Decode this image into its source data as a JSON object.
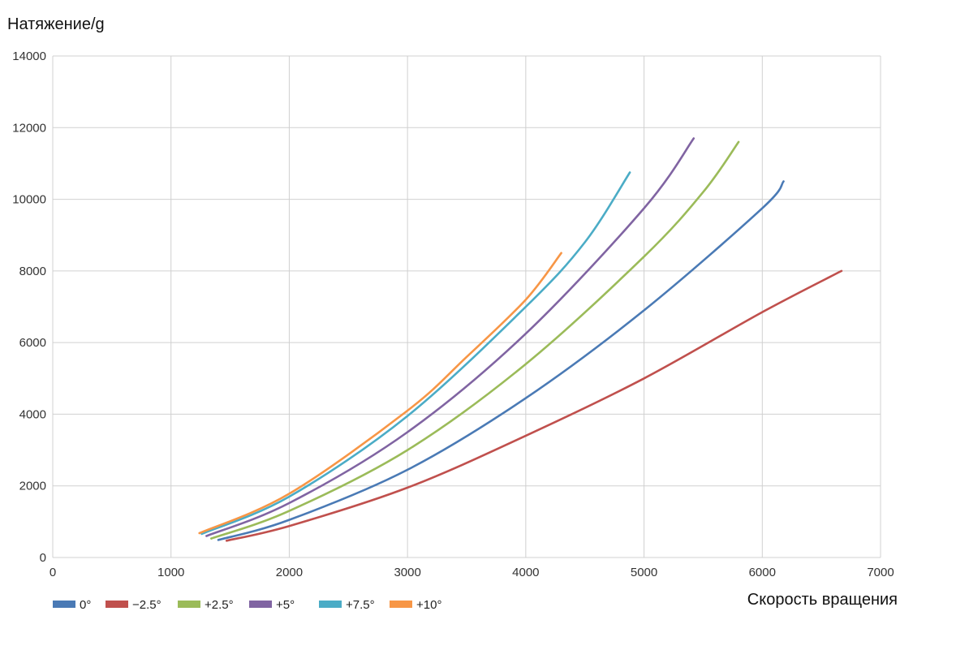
{
  "chart_data": {
    "type": "line",
    "title": "",
    "ylabel": "Натяжение/g",
    "xlabel": "Скорость вращения",
    "xlim": [
      0,
      7000
    ],
    "ylim": [
      0,
      14000
    ],
    "x_ticks": [
      "0",
      "1000",
      "2000",
      "3000",
      "4000",
      "5000",
      "6000",
      "7000"
    ],
    "y_ticks": [
      "0",
      "2000",
      "4000",
      "6000",
      "8000",
      "10000",
      "12000",
      "14000"
    ],
    "grid": true,
    "legend_position": "bottom-left",
    "series": [
      {
        "name": "0°",
        "color": "#4a7ab5",
        "points": [
          [
            1400,
            490
          ],
          [
            2000,
            1050
          ],
          [
            3000,
            2450
          ],
          [
            4000,
            4450
          ],
          [
            5000,
            6900
          ],
          [
            6000,
            9750
          ],
          [
            6180,
            10500
          ]
        ]
      },
      {
        "name": "−2.5°",
        "color": "#c0504d",
        "points": [
          [
            1470,
            470
          ],
          [
            2000,
            880
          ],
          [
            3000,
            1950
          ],
          [
            4000,
            3400
          ],
          [
            5000,
            5000
          ],
          [
            6000,
            6850
          ],
          [
            6670,
            8000
          ]
        ]
      },
      {
        "name": "+2.5°",
        "color": "#9bbb59",
        "points": [
          [
            1340,
            530
          ],
          [
            2000,
            1300
          ],
          [
            3000,
            3000
          ],
          [
            4000,
            5400
          ],
          [
            5000,
            8400
          ],
          [
            5500,
            10200
          ],
          [
            5800,
            11600
          ]
        ]
      },
      {
        "name": "+5°",
        "color": "#8064a2",
        "points": [
          [
            1300,
            600
          ],
          [
            2000,
            1520
          ],
          [
            3000,
            3500
          ],
          [
            4000,
            6250
          ],
          [
            5000,
            9750
          ],
          [
            5420,
            11700
          ]
        ]
      },
      {
        "name": "+7.5°",
        "color": "#4bacc6",
        "points": [
          [
            1260,
            660
          ],
          [
            2000,
            1700
          ],
          [
            3000,
            3950
          ],
          [
            4000,
            7000
          ],
          [
            4500,
            8800
          ],
          [
            4880,
            10750
          ]
        ]
      },
      {
        "name": "+10°",
        "color": "#f79646",
        "points": [
          [
            1240,
            680
          ],
          [
            2000,
            1780
          ],
          [
            3000,
            4100
          ],
          [
            3500,
            5600
          ],
          [
            4000,
            7200
          ],
          [
            4300,
            8500
          ]
        ]
      }
    ]
  }
}
